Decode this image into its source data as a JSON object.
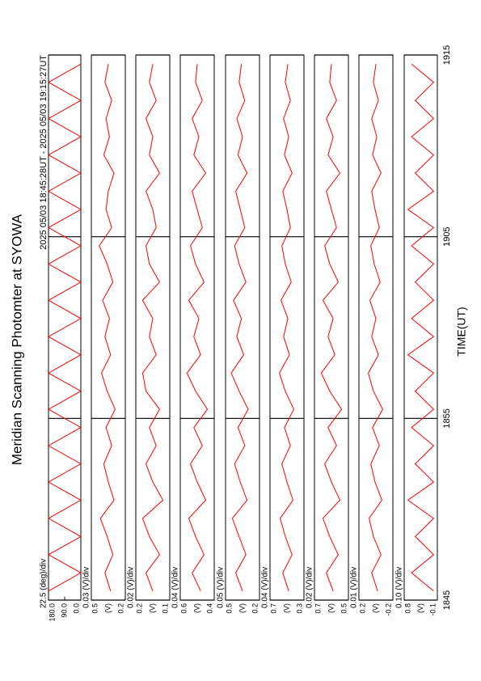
{
  "chart_data": [
    {
      "type": "line",
      "title": "Meridian Scanning Photomter at SYOWA",
      "subtitle": "2025 05/03 18:45:28UT - 2025 05/03 19:15:27UT",
      "scale_label": "22.5 (deg)/div",
      "color": "#ff0000",
      "x": [
        0.5,
        1.5,
        2.5,
        3.5,
        4.5,
        5.5,
        6.5,
        7.5,
        8.5,
        9.5,
        10.5,
        11.5,
        12.5,
        13.5,
        14.5,
        15.5,
        16.5,
        17.5,
        18.5,
        19.5,
        20.5,
        21.5,
        22.5,
        23.5,
        24.5,
        25.5,
        26.5,
        27.5,
        28.5,
        29.5
      ],
      "values": [
        180,
        0,
        180,
        0,
        180,
        0,
        180,
        0,
        180,
        0,
        180,
        0,
        180,
        0,
        180,
        0,
        180,
        0,
        180,
        0,
        180,
        0,
        180,
        0,
        180,
        0,
        180,
        0,
        180,
        0
      ],
      "ylim": [
        0,
        180
      ],
      "yticks": [
        {
          "value": 180,
          "label": "180.0"
        },
        {
          "value": 90,
          "label": "90.0"
        },
        {
          "value": 0,
          "label": "0.0"
        }
      ]
    },
    {
      "type": "line",
      "scale_label": "0.03 (V)/div",
      "ylabel": "(V)",
      "color": "#ff0000",
      "values": [
        0.33,
        0.38,
        0.31,
        0.36,
        0.42,
        0.3,
        0.35,
        0.39,
        0.32,
        0.37,
        0.29,
        0.36,
        0.41,
        0.33,
        0.38,
        0.34,
        0.4,
        0.31,
        0.36,
        0.43,
        0.32,
        0.37,
        0.35,
        0.3,
        0.39,
        0.34,
        0.37,
        0.32,
        0.38,
        0.35
      ],
      "ylim": [
        0.2,
        0.5
      ],
      "yticks": [
        0.5,
        0.2
      ]
    },
    {
      "type": "line",
      "scale_label": "0.02 (V)/div",
      "ylabel": "(V)",
      "color": "#ff0000",
      "values": [
        0.15,
        0.17,
        0.13,
        0.16,
        0.18,
        0.12,
        0.15,
        0.17,
        0.14,
        0.16,
        0.13,
        0.17,
        0.18,
        0.14,
        0.16,
        0.15,
        0.18,
        0.13,
        0.16,
        0.17,
        0.14,
        0.15,
        0.17,
        0.13,
        0.16,
        0.15,
        0.17,
        0.14,
        0.16,
        0.15
      ],
      "ylim": [
        0.1,
        0.2
      ],
      "yticks": [
        0.2,
        0.1
      ]
    },
    {
      "type": "line",
      "scale_label": "0.04 (V)/div",
      "ylabel": "(V)",
      "color": "#ff0000",
      "values": [
        0.48,
        0.53,
        0.46,
        0.51,
        0.55,
        0.45,
        0.5,
        0.54,
        0.47,
        0.52,
        0.44,
        0.51,
        0.56,
        0.48,
        0.52,
        0.49,
        0.55,
        0.46,
        0.51,
        0.54,
        0.47,
        0.5,
        0.53,
        0.45,
        0.52,
        0.49,
        0.53,
        0.47,
        0.51,
        0.5
      ],
      "ylim": [
        0.4,
        0.6
      ],
      "yticks": [
        0.6,
        0.4
      ]
    },
    {
      "type": "line",
      "scale_label": "0.05 (V)/div",
      "ylabel": "(V)",
      "color": "#ff0000",
      "values": [
        0.35,
        0.41,
        0.32,
        0.38,
        0.44,
        0.31,
        0.37,
        0.42,
        0.33,
        0.39,
        0.3,
        0.38,
        0.45,
        0.34,
        0.4,
        0.36,
        0.43,
        0.32,
        0.38,
        0.42,
        0.33,
        0.37,
        0.41,
        0.31,
        0.39,
        0.35,
        0.4,
        0.33,
        0.38,
        0.36
      ],
      "ylim": [
        0.2,
        0.5
      ],
      "yticks": [
        0.5,
        0.2
      ]
    },
    {
      "type": "line",
      "scale_label": "0.04 (V)/div",
      "ylabel": "(V)",
      "color": "#ff0000",
      "values": [
        0.48,
        0.55,
        0.44,
        0.52,
        0.58,
        0.43,
        0.5,
        0.56,
        0.46,
        0.53,
        0.42,
        0.52,
        0.59,
        0.47,
        0.54,
        0.49,
        0.57,
        0.45,
        0.52,
        0.56,
        0.46,
        0.5,
        0.55,
        0.44,
        0.53,
        0.48,
        0.54,
        0.46,
        0.52,
        0.49
      ],
      "ylim": [
        0.3,
        0.7
      ],
      "yticks": [
        0.7,
        0.3
      ]
    },
    {
      "type": "line",
      "scale_label": "0.02 (V)/div",
      "ylabel": "(V)",
      "color": "#ff0000",
      "values": [
        0.59,
        0.63,
        0.56,
        0.61,
        0.65,
        0.55,
        0.6,
        0.64,
        0.57,
        0.62,
        0.54,
        0.61,
        0.66,
        0.58,
        0.62,
        0.59,
        0.65,
        0.56,
        0.61,
        0.64,
        0.57,
        0.6,
        0.63,
        0.55,
        0.62,
        0.59,
        0.63,
        0.57,
        0.61,
        0.6
      ],
      "ylim": [
        0.5,
        0.7
      ],
      "yticks": [
        0.7,
        0.5
      ]
    },
    {
      "type": "line",
      "scale_label": "0.01 (V)/div",
      "ylabel": "(V)",
      "color": "#ff0000",
      "values": [
        -0.02,
        0.05,
        -0.06,
        0.03,
        0.08,
        -0.07,
        0.01,
        0.06,
        -0.04,
        0.04,
        -0.08,
        0.03,
        0.09,
        -0.03,
        0.05,
        0.0,
        0.07,
        -0.05,
        0.02,
        0.06,
        -0.04,
        0.01,
        0.05,
        -0.06,
        0.04,
        -0.01,
        0.05,
        -0.03,
        0.03,
        0.0
      ],
      "ylim": [
        -0.2,
        0.2
      ],
      "yticks": [
        0.2,
        -0.2
      ]
    },
    {
      "type": "line",
      "scale_label": "0.10 (V)/div",
      "ylabel": "(V)",
      "color": "#ff0000",
      "values": [
        0.0,
        0.6,
        0.0,
        0.5,
        0.0,
        0.7,
        0.0,
        0.5,
        0.0,
        0.6,
        0.0,
        0.5,
        0.0,
        0.7,
        0.0,
        0.6,
        0.0,
        0.5,
        0.0,
        0.6,
        0.0,
        0.7,
        0.0,
        0.5,
        0.0,
        0.6,
        0.0,
        0.5,
        0.0,
        0.6
      ],
      "ylim": [
        -0.1,
        0.8
      ],
      "yticks": [
        0.8,
        -0.1
      ],
      "xlabel": "TIME(UT)",
      "xlim": [
        0,
        30
      ],
      "xticks": [
        {
          "value": 0,
          "label": "1845"
        },
        {
          "value": 10,
          "label": "1855"
        },
        {
          "value": 20,
          "label": "1905"
        },
        {
          "value": 30,
          "label": "1915"
        }
      ]
    }
  ]
}
